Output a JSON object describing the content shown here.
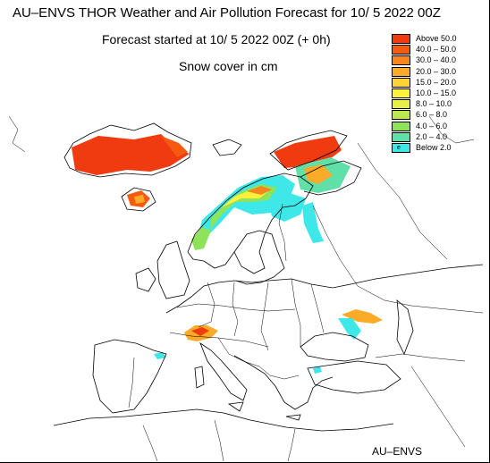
{
  "title": "AU–ENVS THOR Weather and Air Pollution Forecast for 10/ 5 2022  00Z",
  "subtitle": "Forecast started at 10/ 5 2022  00Z (+ 0h)",
  "variable": "Snow cover in cm",
  "footer": "AU–ENVS",
  "legend": [
    {
      "label": "Above   50.0",
      "color": "#f03a10"
    },
    {
      "label": "40.0  –  50.0",
      "color": "#f55a10"
    },
    {
      "label": "30.0  –  40.0",
      "color": "#f8861e"
    },
    {
      "label": "20.0  –  30.0",
      "color": "#fbab28"
    },
    {
      "label": "15.0  –  20.0",
      "color": "#fdd434"
    },
    {
      "label": "10.0  –  15.0",
      "color": "#fcf23c"
    },
    {
      "label": "8.0  –  10.0",
      "color": "#e6f046"
    },
    {
      "label": "6.0  –    8.0",
      "color": "#bce84e"
    },
    {
      "label": "4.0  –    6.0",
      "color": "#8ee35a"
    },
    {
      "label": "2.0  –    4.0",
      "color": "#5fe0a8"
    },
    {
      "label": "Below    2.0",
      "color": "#3ee8e8",
      "symbol": "e"
    }
  ]
}
